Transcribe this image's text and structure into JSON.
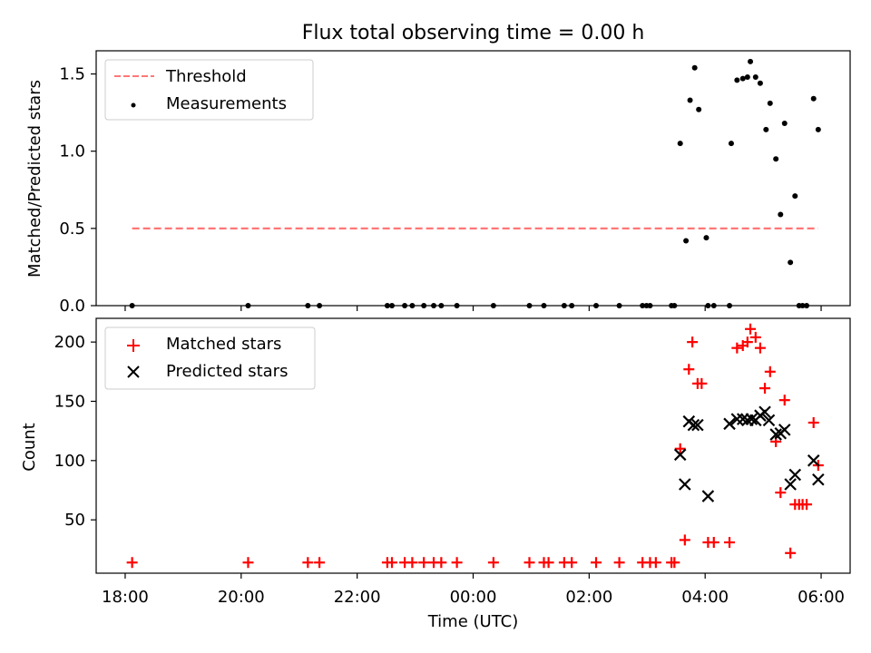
{
  "chart_data": {
    "title": "Flux total observing time = 0.00 h",
    "xlabel": "Time (UTC)",
    "x_ticks": [
      "18:00",
      "20:00",
      "22:00",
      "00:00",
      "02:00",
      "04:00",
      "06:00"
    ],
    "x_units": "hours since 18:00 UTC",
    "xlim": [
      -0.5,
      12.5
    ],
    "panels": [
      {
        "type": "scatter",
        "ylabel": "Matched/Predicted stars",
        "ylim": [
          0,
          1.65
        ],
        "y_ticks": [
          0.0,
          0.5,
          1.0,
          1.5
        ],
        "legend": {
          "position": "top-left"
        },
        "series": [
          {
            "name": "Threshold",
            "kind": "dashed-line",
            "color": "#ff7777",
            "x": [
              0.12,
              11.95
            ],
            "y": [
              0.5,
              0.5
            ]
          },
          {
            "name": "Measurements",
            "kind": "dot",
            "color": "#000000",
            "x": [
              0.12,
              2.12,
              3.15,
              3.35,
              4.52,
              4.6,
              4.82,
              4.95,
              5.15,
              5.32,
              5.45,
              5.72,
              6.35,
              6.97,
              7.22,
              7.57,
              7.7,
              8.12,
              8.52,
              8.92,
              8.99,
              9.05,
              9.42,
              9.47,
              9.57,
              9.67,
              9.74,
              9.82,
              9.89,
              10.02,
              10.05,
              10.15,
              10.42,
              10.45,
              10.55,
              10.65,
              10.73,
              10.78,
              10.87,
              10.95,
              11.05,
              11.12,
              11.22,
              11.3,
              11.37,
              11.47,
              11.55,
              11.62,
              11.68,
              11.75,
              11.87,
              11.95
            ],
            "y": [
              0,
              0,
              0,
              0,
              0,
              0,
              0,
              0,
              0,
              0,
              0,
              0,
              0,
              0,
              0,
              0,
              0,
              0,
              0,
              0,
              0,
              0,
              0,
              0,
              1.05,
              0.42,
              1.33,
              1.54,
              1.27,
              0.44,
              0,
              0,
              0,
              1.05,
              1.46,
              1.47,
              1.48,
              1.58,
              1.48,
              1.44,
              1.14,
              1.31,
              0.95,
              0.59,
              1.18,
              0.28,
              0.71,
              0,
              0,
              0,
              1.34,
              1.14
            ]
          }
        ]
      },
      {
        "type": "scatter",
        "ylabel": "Count",
        "ylim": [
          5,
          220
        ],
        "y_ticks": [
          50,
          100,
          150,
          200
        ],
        "legend": {
          "position": "top-left"
        },
        "series": [
          {
            "name": "Matched stars",
            "kind": "plus",
            "color": "#ff0000",
            "x": [
              0.12,
              2.12,
              3.15,
              3.35,
              4.52,
              4.6,
              4.82,
              4.95,
              5.15,
              5.32,
              5.45,
              5.72,
              6.35,
              6.97,
              7.22,
              7.3,
              7.57,
              7.7,
              8.12,
              8.52,
              8.92,
              9.05,
              9.15,
              9.42,
              9.47,
              9.57,
              9.65,
              9.72,
              9.78,
              9.87,
              9.94,
              10.05,
              10.15,
              10.42,
              10.55,
              10.65,
              10.73,
              10.78,
              10.87,
              10.95,
              11.03,
              11.12,
              11.22,
              11.3,
              11.37,
              11.47,
              11.55,
              11.62,
              11.68,
              11.75,
              11.87,
              11.95
            ],
            "y": [
              14,
              14,
              14,
              14,
              14,
              14,
              14,
              14,
              14,
              14,
              14,
              14,
              14,
              14,
              14,
              14,
              14,
              14,
              14,
              14,
              14,
              14,
              14,
              14,
              14,
              110,
              33,
              177,
              200,
              165,
              165,
              31,
              31,
              31,
              195,
              197,
              200,
              211,
              204,
              195,
              161,
              175,
              116,
              73,
              151,
              22,
              63,
              63,
              63,
              63,
              132,
              96
            ]
          },
          {
            "name": "Predicted stars",
            "kind": "cross",
            "color": "#000000",
            "x": [
              9.57,
              9.65,
              9.72,
              9.8,
              9.87,
              10.05,
              10.42,
              10.55,
              10.65,
              10.73,
              10.8,
              10.87,
              10.95,
              11.03,
              11.1,
              11.22,
              11.3,
              11.37,
              11.47,
              11.55,
              11.87,
              11.95
            ],
            "y": [
              105,
              80,
              133,
              130,
              130,
              70,
              131,
              135,
              135,
              134,
              135,
              134,
              138,
              141,
              134,
              122,
              123,
              126,
              80,
              88,
              100,
              84
            ]
          }
        ]
      }
    ]
  }
}
